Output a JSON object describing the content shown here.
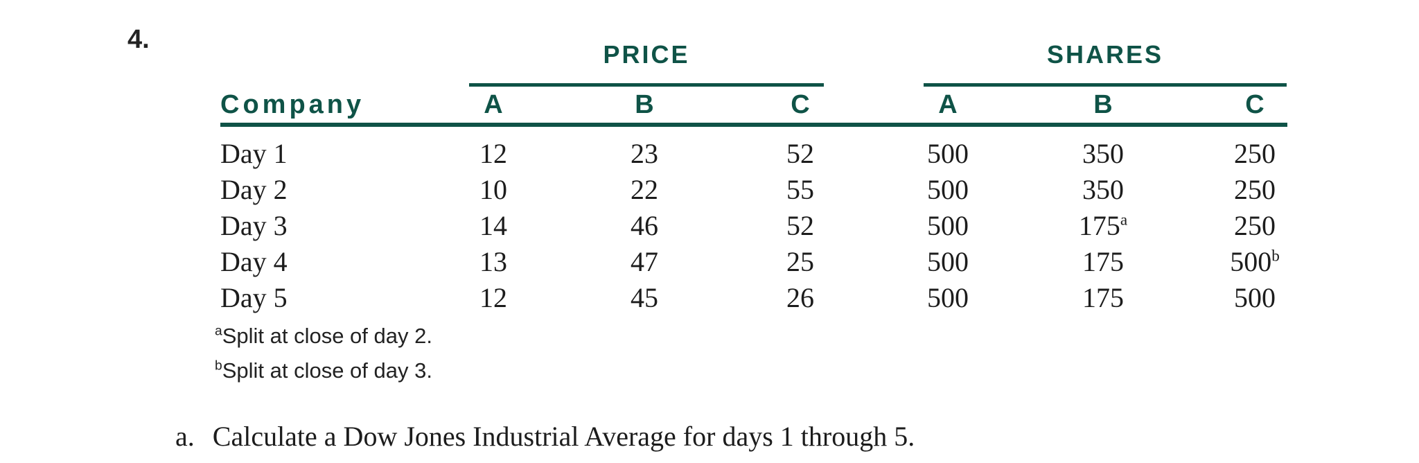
{
  "colors": {
    "accent_green": "#0f5347",
    "body_text": "#1c1c1c",
    "background": "#ffffff"
  },
  "problem_number": "4.",
  "table": {
    "company_header": "Company",
    "group_headers": {
      "price": "PRICE",
      "shares": "SHARES"
    },
    "sub_headers": [
      "A",
      "B",
      "C",
      "A",
      "B",
      "C"
    ],
    "rows": [
      {
        "label": "Day 1",
        "values": [
          "12",
          "23",
          "52",
          "500",
          "350",
          "250"
        ]
      },
      {
        "label": "Day 2",
        "values": [
          "10",
          "22",
          "55",
          "500",
          "350",
          "250"
        ]
      },
      {
        "label": "Day 3",
        "values": [
          "14",
          "46",
          "52",
          "500",
          "175",
          "250"
        ],
        "sups": {
          "4": "a"
        }
      },
      {
        "label": "Day 4",
        "values": [
          "13",
          "47",
          "25",
          "500",
          "175",
          "500"
        ],
        "sups": {
          "5": "b"
        }
      },
      {
        "label": "Day 5",
        "values": [
          "12",
          "45",
          "26",
          "500",
          "175",
          "500"
        ]
      }
    ],
    "footnotes": [
      {
        "marker": "a",
        "text": "Split at close of day 2."
      },
      {
        "marker": "b",
        "text": "Split at close of day 3."
      }
    ]
  },
  "question": {
    "item_label": "a.",
    "text": "Calculate a Dow Jones Industrial Average for days 1 through 5."
  }
}
